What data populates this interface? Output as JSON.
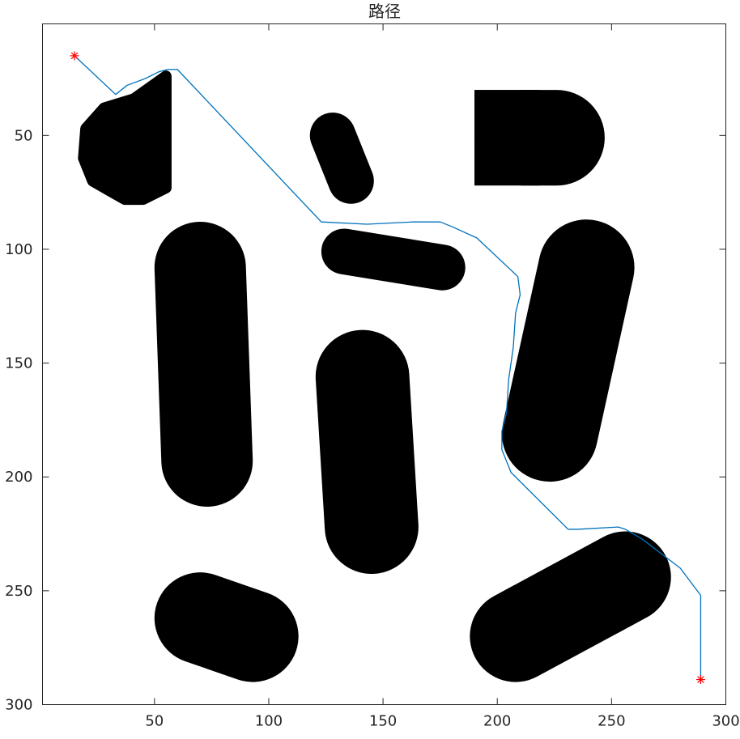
{
  "chart_data": {
    "type": "scatter",
    "title": "路径",
    "xlabel": "",
    "ylabel": "",
    "xlim": [
      1,
      300
    ],
    "ylim": [
      1,
      300
    ],
    "y_reversed": true,
    "x_ticks": [
      50,
      100,
      150,
      200,
      250,
      300
    ],
    "y_ticks": [
      50,
      100,
      150,
      200,
      250,
      300
    ],
    "x_tick_labels": [
      "50",
      "100",
      "150",
      "200",
      "250",
      "300"
    ],
    "y_tick_labels": [
      "50",
      "100",
      "150",
      "200",
      "250",
      "300"
    ],
    "grid": false,
    "obstacle_color": "#000000",
    "path_color": "#0072BD",
    "marker_color": "#FF0000",
    "obstacles": [
      {
        "shape": "blob",
        "points": [
          [
            41,
            34
          ],
          [
            55,
            24
          ],
          [
            55,
            73
          ],
          [
            45,
            78
          ],
          [
            37,
            78
          ],
          [
            23,
            70
          ],
          [
            19,
            60
          ],
          [
            20,
            47
          ],
          [
            28,
            38
          ]
        ]
      },
      {
        "shape": "capsule",
        "from": [
          128,
          50
        ],
        "to": [
          136,
          70
        ],
        "radius": 10
      },
      {
        "shape": "rounded-rect",
        "x": [
          190,
          247
        ],
        "y": [
          30,
          72
        ],
        "corner_radius": 21
      },
      {
        "shape": "capsule",
        "from": [
          70,
          108
        ],
        "to": [
          73,
          193
        ],
        "radius": 20
      },
      {
        "shape": "capsule",
        "from": [
          133,
          101
        ],
        "to": [
          176,
          108
        ],
        "radius": 10
      },
      {
        "shape": "capsule",
        "from": [
          239,
          108
        ],
        "to": [
          223,
          181
        ],
        "radius": 21
      },
      {
        "shape": "capsule",
        "from": [
          141,
          156
        ],
        "to": [
          145,
          222
        ],
        "radius": 20.5
      },
      {
        "shape": "capsule",
        "from": [
          70,
          262
        ],
        "to": [
          93,
          270
        ],
        "radius": 20
      },
      {
        "shape": "capsule",
        "from": [
          208,
          270
        ],
        "to": [
          256,
          244
        ],
        "radius": 20
      }
    ],
    "series": [
      {
        "type": "line",
        "x": [
          15,
          33,
          38,
          46,
          52,
          56,
          58,
          60,
          123,
          143,
          163,
          175,
          180,
          191,
          209,
          210,
          208,
          207,
          205,
          204,
          202,
          202,
          206,
          231,
          235,
          253,
          256,
          263,
          280,
          289,
          289
        ],
        "y": [
          15,
          32,
          28,
          25,
          22,
          21,
          21,
          21,
          88,
          89,
          88,
          88,
          90,
          95,
          112,
          120,
          128,
          143,
          157,
          172,
          180,
          188,
          198,
          223,
          223,
          222,
          223,
          227,
          240,
          252,
          289
        ]
      },
      {
        "type": "scatter",
        "marker": "*",
        "x": [
          15,
          289
        ],
        "y": [
          15,
          289
        ]
      }
    ]
  }
}
